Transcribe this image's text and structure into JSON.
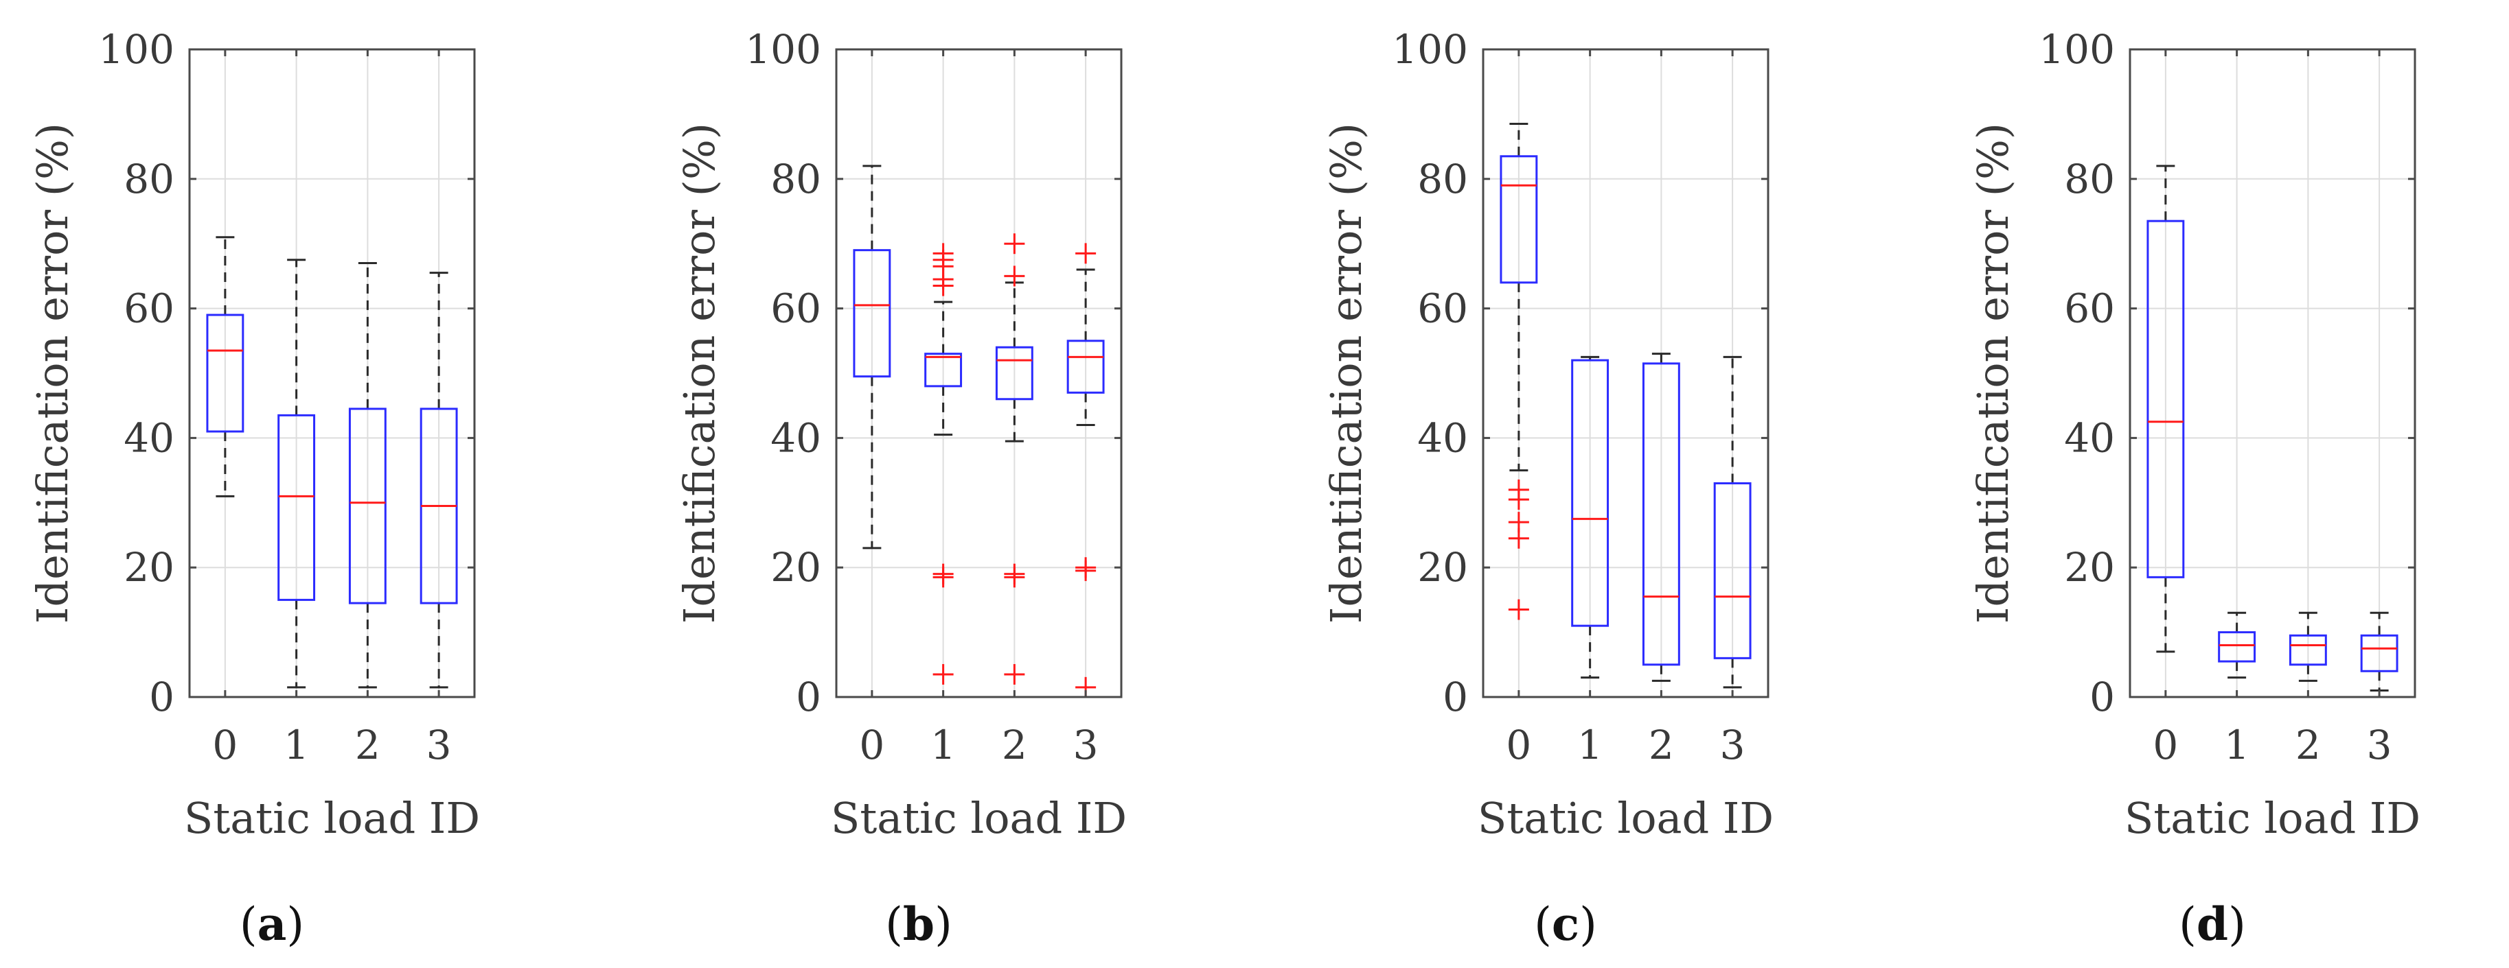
{
  "chart_data": [
    {
      "id": "a",
      "type": "boxplot",
      "caption_letter": "a",
      "xlabel": "Static load ID",
      "ylabel": "Identification error (%)",
      "ylim": [
        0,
        100
      ],
      "yticks": [
        0,
        20,
        40,
        60,
        80,
        100
      ],
      "categories": [
        "0",
        "1",
        "2",
        "3"
      ],
      "boxes": [
        {
          "category": "0",
          "whisker_low": 31,
          "q1": 41,
          "median": 53.5,
          "q3": 59,
          "whisker_high": 71,
          "outliers": []
        },
        {
          "category": "1",
          "whisker_low": 1.5,
          "q1": 15,
          "median": 31,
          "q3": 43.5,
          "whisker_high": 67.5,
          "outliers": []
        },
        {
          "category": "2",
          "whisker_low": 1.5,
          "q1": 14.5,
          "median": 30,
          "q3": 44.5,
          "whisker_high": 67,
          "outliers": []
        },
        {
          "category": "3",
          "whisker_low": 1.5,
          "q1": 14.5,
          "median": 29.5,
          "q3": 44.5,
          "whisker_high": 65.5,
          "outliers": []
        }
      ]
    },
    {
      "id": "b",
      "type": "boxplot",
      "caption_letter": "b",
      "xlabel": "Static load ID",
      "ylabel": "Identification error (%)",
      "ylim": [
        0,
        100
      ],
      "yticks": [
        0,
        20,
        40,
        60,
        80,
        100
      ],
      "categories": [
        "0",
        "1",
        "2",
        "3"
      ],
      "boxes": [
        {
          "category": "0",
          "whisker_low": 23,
          "q1": 49.5,
          "median": 60.5,
          "q3": 69,
          "whisker_high": 82,
          "outliers": []
        },
        {
          "category": "1",
          "whisker_low": 40.5,
          "q1": 48,
          "median": 52.5,
          "q3": 53,
          "whisker_high": 61,
          "outliers": [
            3.5,
            18.5,
            19,
            63.5,
            64.5,
            66.5,
            67.5,
            68.5
          ]
        },
        {
          "category": "2",
          "whisker_low": 39.5,
          "q1": 46,
          "median": 52,
          "q3": 54,
          "whisker_high": 64,
          "outliers": [
            3.5,
            18.5,
            19,
            65,
            70
          ]
        },
        {
          "category": "3",
          "whisker_low": 42,
          "q1": 47,
          "median": 52.5,
          "q3": 55,
          "whisker_high": 66,
          "outliers": [
            1.5,
            19.5,
            20,
            68.5
          ]
        }
      ]
    },
    {
      "id": "c",
      "type": "boxplot",
      "caption_letter": "c",
      "xlabel": "Static load ID",
      "ylabel": "Identification error (%)",
      "ylim": [
        0,
        100
      ],
      "yticks": [
        0,
        20,
        40,
        60,
        80,
        100
      ],
      "categories": [
        "0",
        "1",
        "2",
        "3"
      ],
      "boxes": [
        {
          "category": "0",
          "whisker_low": 35,
          "q1": 64,
          "median": 79,
          "q3": 83.5,
          "whisker_high": 88.5,
          "outliers": [
            13.5,
            24.5,
            27,
            30.5,
            32
          ]
        },
        {
          "category": "1",
          "whisker_low": 3,
          "q1": 11,
          "median": 27.5,
          "q3": 52,
          "whisker_high": 52.5,
          "outliers": []
        },
        {
          "category": "2",
          "whisker_low": 2.5,
          "q1": 5,
          "median": 15.5,
          "q3": 51.5,
          "whisker_high": 53,
          "outliers": []
        },
        {
          "category": "3",
          "whisker_low": 1.5,
          "q1": 6,
          "median": 15.5,
          "q3": 33,
          "whisker_high": 52.5,
          "outliers": []
        }
      ]
    },
    {
      "id": "d",
      "type": "boxplot",
      "caption_letter": "d",
      "xlabel": "Static load ID",
      "ylabel": "Identification error (%)",
      "ylim": [
        0,
        100
      ],
      "yticks": [
        0,
        20,
        40,
        60,
        80,
        100
      ],
      "categories": [
        "0",
        "1",
        "2",
        "3"
      ],
      "boxes": [
        {
          "category": "0",
          "whisker_low": 7,
          "q1": 18.5,
          "median": 42.5,
          "q3": 73.5,
          "whisker_high": 82,
          "outliers": []
        },
        {
          "category": "1",
          "whisker_low": 3,
          "q1": 5.5,
          "median": 8,
          "q3": 10,
          "whisker_high": 13,
          "outliers": []
        },
        {
          "category": "2",
          "whisker_low": 2.5,
          "q1": 5,
          "median": 8,
          "q3": 9.5,
          "whisker_high": 13,
          "outliers": []
        },
        {
          "category": "3",
          "whisker_low": 1,
          "q1": 4,
          "median": 7.5,
          "q3": 9.5,
          "whisker_high": 13,
          "outliers": []
        }
      ]
    }
  ],
  "colors": {
    "box": "#2b2bff",
    "median": "#ff1a1a",
    "whisker": "#2a2a2a",
    "outlier": "#ff1a1a",
    "grid": "#dddddd",
    "axis": "#4a4a4a"
  }
}
